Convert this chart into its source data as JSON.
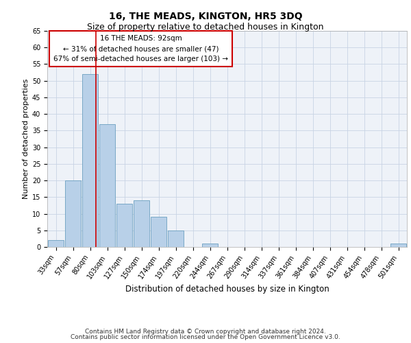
{
  "title": "16, THE MEADS, KINGTON, HR5 3DQ",
  "subtitle": "Size of property relative to detached houses in Kington",
  "xlabel": "Distribution of detached houses by size in Kington",
  "ylabel": "Number of detached properties",
  "bar_color": "#b8d0e8",
  "bar_edgecolor": "#6a9fc0",
  "grid_color": "#c8d4e4",
  "background_color": "#eef2f8",
  "categories": [
    "33sqm",
    "57sqm",
    "80sqm",
    "103sqm",
    "127sqm",
    "150sqm",
    "174sqm",
    "197sqm",
    "220sqm",
    "244sqm",
    "267sqm",
    "290sqm",
    "314sqm",
    "337sqm",
    "361sqm",
    "384sqm",
    "407sqm",
    "431sqm",
    "454sqm",
    "478sqm",
    "501sqm"
  ],
  "values": [
    2,
    20,
    52,
    37,
    13,
    14,
    9,
    5,
    0,
    1,
    0,
    0,
    0,
    0,
    0,
    0,
    0,
    0,
    0,
    0,
    1
  ],
  "red_line_x": 2.33,
  "annotation_text": "16 THE MEADS: 92sqm\n← 31% of detached houses are smaller (47)\n67% of semi-detached houses are larger (103) →",
  "annotation_box_color": "white",
  "annotation_box_edgecolor": "#cc0000",
  "ylim": [
    0,
    65
  ],
  "yticks": [
    0,
    5,
    10,
    15,
    20,
    25,
    30,
    35,
    40,
    45,
    50,
    55,
    60,
    65
  ],
  "footnote_line1": "Contains HM Land Registry data © Crown copyright and database right 2024.",
  "footnote_line2": "Contains public sector information licensed under the Open Government Licence v3.0.",
  "title_fontsize": 10,
  "subtitle_fontsize": 9,
  "xlabel_fontsize": 8.5,
  "ylabel_fontsize": 8,
  "tick_fontsize": 7,
  "annotation_fontsize": 7.5,
  "footnote_fontsize": 6.5
}
